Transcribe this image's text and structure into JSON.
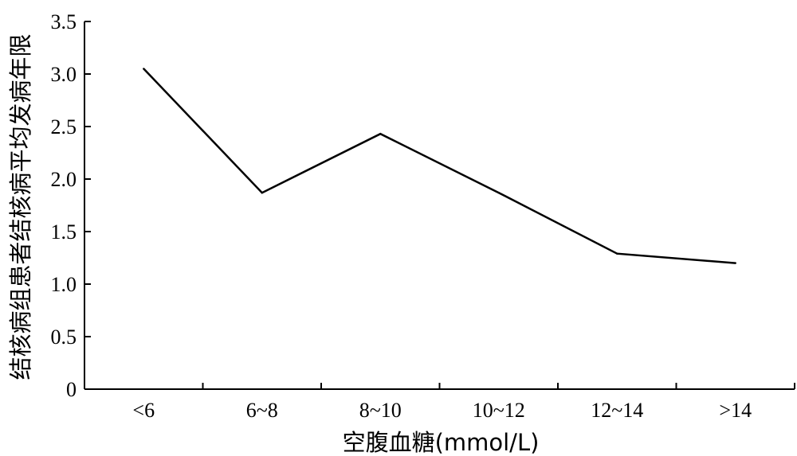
{
  "chart_data": {
    "type": "line",
    "categories": [
      "<6",
      "6~8",
      "8~10",
      "10~12",
      "12~14",
      ">14"
    ],
    "values": [
      3.05,
      1.87,
      2.43,
      1.87,
      1.29,
      1.2
    ],
    "xlabel": "空腹血糖(mmol/L)",
    "ylabel": "结核病组患者结核病平均发病年限",
    "ylim": [
      0,
      3.5
    ],
    "yticks": [
      "0",
      "0.5",
      "1.0",
      "1.5",
      "2.0",
      "2.5",
      "3.0",
      "3.5"
    ],
    "grid": false,
    "line_color": "#000000"
  }
}
